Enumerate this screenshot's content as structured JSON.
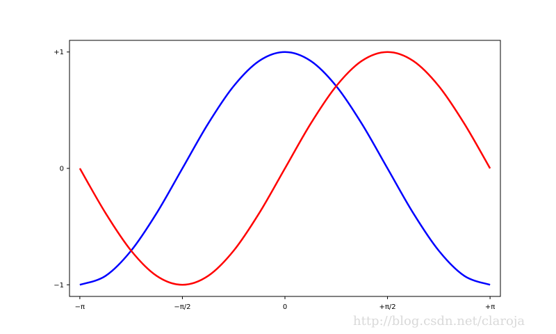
{
  "chart_data": {
    "type": "line",
    "title": "",
    "xlabel": "",
    "ylabel": "",
    "xlim": [
      -3.3,
      3.3
    ],
    "ylim": [
      -1.1,
      1.1
    ],
    "grid": false,
    "x_ticks": [
      {
        "value": -3.14159265,
        "label": "−π"
      },
      {
        "value": -1.57079633,
        "label": "−π/2"
      },
      {
        "value": 0,
        "label": "0"
      },
      {
        "value": 1.57079633,
        "label": "+π/2"
      },
      {
        "value": 3.14159265,
        "label": "+π"
      }
    ],
    "y_ticks": [
      {
        "value": -1,
        "label": "−1"
      },
      {
        "value": 0,
        "label": "0"
      },
      {
        "value": 1,
        "label": "+1"
      }
    ],
    "x": [
      -3.1416,
      -2.7489,
      -2.3562,
      -1.9635,
      -1.5708,
      -1.1781,
      -0.7854,
      -0.3927,
      0,
      0.3927,
      0.7854,
      1.1781,
      1.5708,
      1.9635,
      2.3562,
      2.7489,
      3.1416
    ],
    "series": [
      {
        "color": "#0000ff",
        "values": [
          -1,
          -0.924,
          -0.707,
          -0.383,
          0,
          0.383,
          0.707,
          0.924,
          1,
          0.924,
          0.707,
          0.383,
          0,
          -0.383,
          -0.707,
          -0.924,
          -1
        ]
      },
      {
        "color": "#ff0000",
        "values": [
          0,
          -0.383,
          -0.707,
          -0.924,
          -1,
          -0.924,
          -0.707,
          -0.383,
          0,
          0.383,
          0.707,
          0.924,
          1,
          0.924,
          0.707,
          0.383,
          0
        ]
      }
    ]
  },
  "watermark": "http://blog.csdn.net/claroja"
}
